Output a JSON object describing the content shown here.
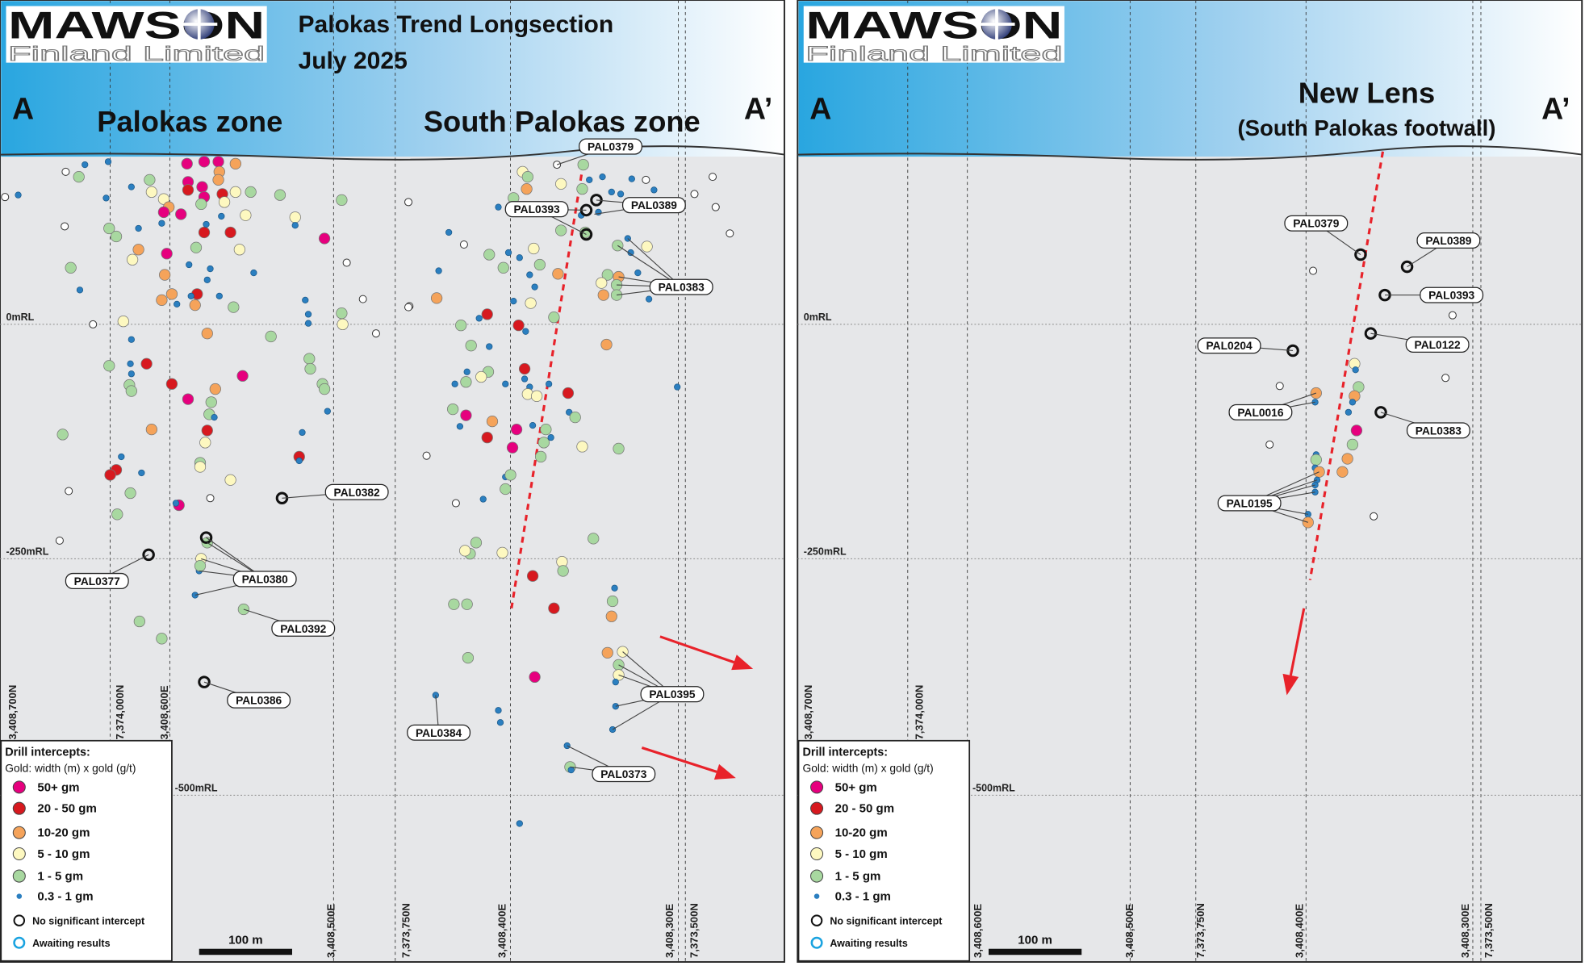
{
  "logo": {
    "brand": "MAWSON",
    "sub": "Finland Limited"
  },
  "left_panel": {
    "title_line1": "Palokas Trend Longsection",
    "title_line2": "July 2025",
    "marker_a": "A",
    "marker_a_prime": "A’",
    "zone_left": "Palokas zone",
    "zone_right": "South Palokas zone",
    "levels": [
      "0mRL",
      "-250mRL",
      "-500mRL"
    ],
    "grid_labels": [
      "3,408,700N",
      "7,374,000N",
      "3,408,600E",
      "3,408,500E",
      "7,373,750N",
      "3,408,400E",
      "3,408,300E",
      "7,373,500N"
    ],
    "drill_holes": [
      "PAL0379",
      "PAL0393",
      "PAL0389",
      "PAL0383",
      "PAL0382",
      "PAL0377",
      "PAL0380",
      "PAL0392",
      "PAL0386",
      "PAL0384",
      "PAL0395",
      "PAL0373"
    ],
    "scale_label": "100 m"
  },
  "right_panel": {
    "marker_a": "A",
    "marker_a_prime": "A’",
    "headline": "New Lens",
    "subhead": "(South Palokas footwall)",
    "levels": [
      "0mRL",
      "-250mRL",
      "-500mRL"
    ],
    "grid_labels": [
      "3,408,700N",
      "7,374,000N",
      "3,408,600E",
      "3,408,500E",
      "7,373,750N",
      "3,408,400E",
      "3,408,300E",
      "7,373,500N"
    ],
    "drill_holes": [
      "PAL0379",
      "PAL0389",
      "PAL0393",
      "PAL0204",
      "PAL0122",
      "PAL0016",
      "PAL0383",
      "PAL0195"
    ],
    "scale_label": "100 m"
  },
  "legend": {
    "title": "Drill intercepts:",
    "subtitle": "Gold: width (m) x gold (g/t)",
    "items": [
      {
        "key": "m",
        "label": "50+ gm",
        "color": "#e6007e"
      },
      {
        "key": "r",
        "label": "20 - 50 gm",
        "color": "#d7191f"
      },
      {
        "key": "o",
        "label": "10-20 gm",
        "color": "#f5a35a"
      },
      {
        "key": "y",
        "label": "5 - 10 gm",
        "color": "#fdf8c0"
      },
      {
        "key": "g",
        "label": "1 - 5 gm",
        "color": "#a8d8a0"
      },
      {
        "key": "b",
        "label": "0.3 - 1 gm",
        "color": "#2b7fc0"
      },
      {
        "key": "w",
        "label": "No significant intercept",
        "color": "#ffffff"
      },
      {
        "key": "a",
        "label": "Awaiting results",
        "color": "#1aa3e0"
      }
    ]
  },
  "colors": {
    "header_dark": "#29a6e0",
    "header_light": "#ffffff",
    "section_bg": "#e6e7e9",
    "trend_line": "#e8222a"
  }
}
